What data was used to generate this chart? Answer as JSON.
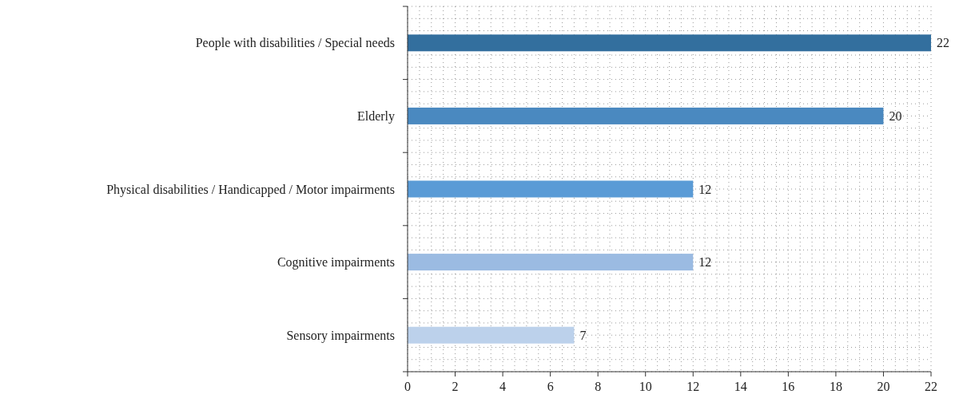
{
  "chart_data": {
    "type": "bar",
    "orientation": "horizontal",
    "categories": [
      "People with disabilities / Special needs",
      "Elderly",
      "Physical disabilities / Handicapped / Motor impairments",
      "Cognitive impairments",
      "Sensory impairments"
    ],
    "values": [
      22,
      20,
      12,
      12,
      7
    ],
    "colors": [
      "#336f9e",
      "#4a89c0",
      "#5a9bd6",
      "#9bbbe2",
      "#bcd1eb"
    ],
    "xlim": [
      0,
      22
    ],
    "xticks": [
      0,
      2,
      4,
      6,
      8,
      10,
      12,
      14,
      16,
      18,
      20,
      22
    ],
    "grid": true,
    "data_labels": true
  }
}
